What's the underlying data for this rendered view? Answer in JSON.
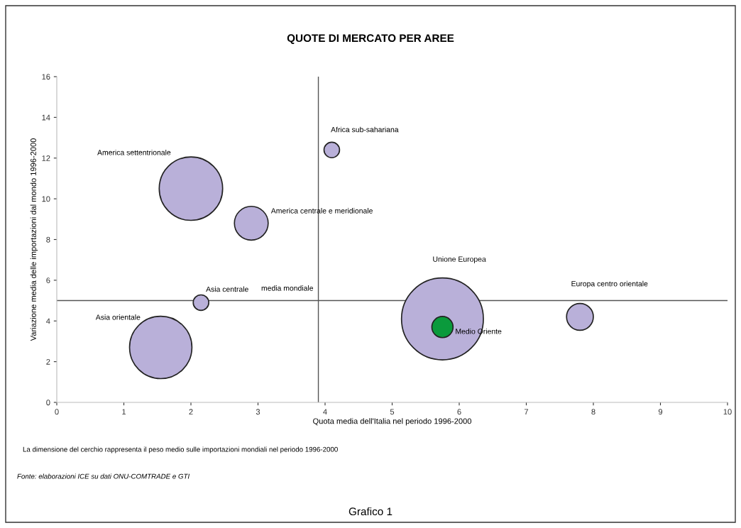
{
  "chart_data": {
    "type": "bubble",
    "title": "QUOTE DI MERCATO PER AREE",
    "xlabel": "Quota media dell'Italia nel periodo 1996-2000",
    "ylabel": "Variazione media delle importazioni dal mondo 1996-2000",
    "xlim": [
      0,
      10
    ],
    "xticks": [
      0,
      1,
      2,
      3,
      4,
      5,
      6,
      7,
      8,
      9,
      10
    ],
    "ylim": [
      0,
      16
    ],
    "yticks": [
      0,
      2,
      4,
      6,
      8,
      10,
      12,
      14,
      16
    ],
    "grid": false,
    "legend": false,
    "series": [
      {
        "name": "America settentrionale",
        "color": "#b9b0d9",
        "x": [
          2.0
        ],
        "values": [
          10.5
        ],
        "sizes": [
          0.6
        ]
      },
      {
        "name": "America centrale e meridionale",
        "color": "#b9b0d9",
        "x": [
          2.9
        ],
        "values": [
          8.8
        ],
        "sizes": [
          0.17
        ]
      },
      {
        "name": "Africa sub-sahariana",
        "color": "#b9b0d9",
        "x": [
          4.1
        ],
        "values": [
          12.4
        ],
        "sizes": [
          0.036
        ]
      },
      {
        "name": "Asia centrale",
        "color": "#b9b0d9",
        "x": [
          2.15
        ],
        "values": [
          4.9
        ],
        "sizes": [
          0.036
        ]
      },
      {
        "name": "Asia orientale",
        "color": "#b9b0d9",
        "x": [
          1.55
        ],
        "values": [
          2.7
        ],
        "sizes": [
          0.58
        ]
      },
      {
        "name": "Unione Europea",
        "color": "#b9b0d9",
        "x": [
          5.75
        ],
        "values": [
          4.1
        ],
        "sizes": [
          1
        ]
      },
      {
        "name": "Medio Oriente",
        "color": "#0a9a3c",
        "x": [
          5.75
        ],
        "values": [
          3.7
        ],
        "sizes": [
          0.067
        ]
      },
      {
        "name": "Europa centro orientale",
        "color": "#b9b0d9",
        "x": [
          7.8
        ],
        "values": [
          4.2
        ],
        "sizes": [
          0.107
        ]
      }
    ],
    "ref_lines": [
      {
        "axis": "x",
        "value": 3.9,
        "color": "#555555"
      },
      {
        "axis": "y",
        "value": 5,
        "color": "#555555"
      }
    ],
    "annotations": [
      {
        "text": "media mondiale",
        "x": 3.9,
        "y": 5
      },
      "La dimensione del cerchio rappresenta il peso medio sulle importazioni mondiali nel periodo 1996-2000",
      "Fonte: elaborazioni ICE su dati ONU-COMTRADE e GTI",
      "Grafico 1"
    ]
  }
}
